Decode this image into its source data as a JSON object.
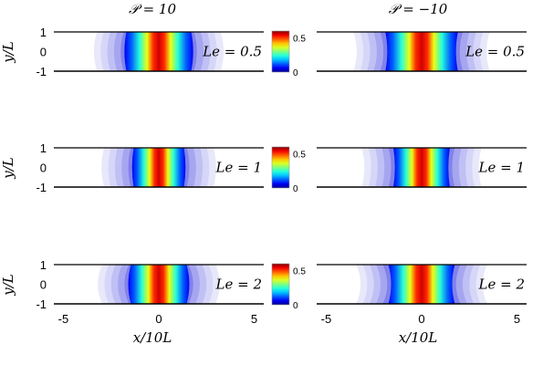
{
  "chart_data": {
    "type": "heatmap",
    "description_colormap": "jet",
    "column_titles": [
      "𝒫 = 10",
      "𝒫 = −10"
    ],
    "row_labels": [
      "Le = 0.5",
      "Le = 1",
      "Le = 2"
    ],
    "xlabel": "x/10L",
    "ylabel": "y/L",
    "xlim": [
      -5.5,
      5.5
    ],
    "ylim": [
      -1,
      1
    ],
    "xticks": [
      -5,
      0,
      5
    ],
    "xtick_labels": [
      "-5",
      "0",
      "5"
    ],
    "yticks": [
      1,
      0,
      -1
    ],
    "ytick_labels": [
      "1",
      "0",
      "-1"
    ],
    "colorbar": {
      "range": [
        0,
        0.6
      ],
      "ticks": [
        0.5,
        0
      ],
      "tick_labels": [
        "0.5",
        "0"
      ]
    },
    "panels": [
      {
        "row": 0,
        "col": 0,
        "label": "Le = 0.5",
        "peak": 0.6,
        "core_half_width": 0.9,
        "halo_half_width": 3.4,
        "curvature": 0.25
      },
      {
        "row": 0,
        "col": 1,
        "label": "Le = 0.5",
        "peak": 0.6,
        "core_half_width": 0.9,
        "halo_half_width": 3.4,
        "curvature": -0.25
      },
      {
        "row": 1,
        "col": 0,
        "label": "Le = 1",
        "peak": 0.6,
        "core_half_width": 0.9,
        "halo_half_width": 3.0,
        "curvature": 0.2
      },
      {
        "row": 1,
        "col": 1,
        "label": "Le = 1",
        "peak": 0.6,
        "core_half_width": 0.9,
        "halo_half_width": 3.0,
        "curvature": -0.2
      },
      {
        "row": 2,
        "col": 0,
        "label": "Le = 2",
        "peak": 0.6,
        "core_half_width": 0.9,
        "halo_half_width": 3.2,
        "curvature": 0.35
      },
      {
        "row": 2,
        "col": 1,
        "label": "Le = 2",
        "peak": 0.6,
        "core_half_width": 0.9,
        "halo_half_width": 3.2,
        "curvature": -0.35
      }
    ]
  }
}
